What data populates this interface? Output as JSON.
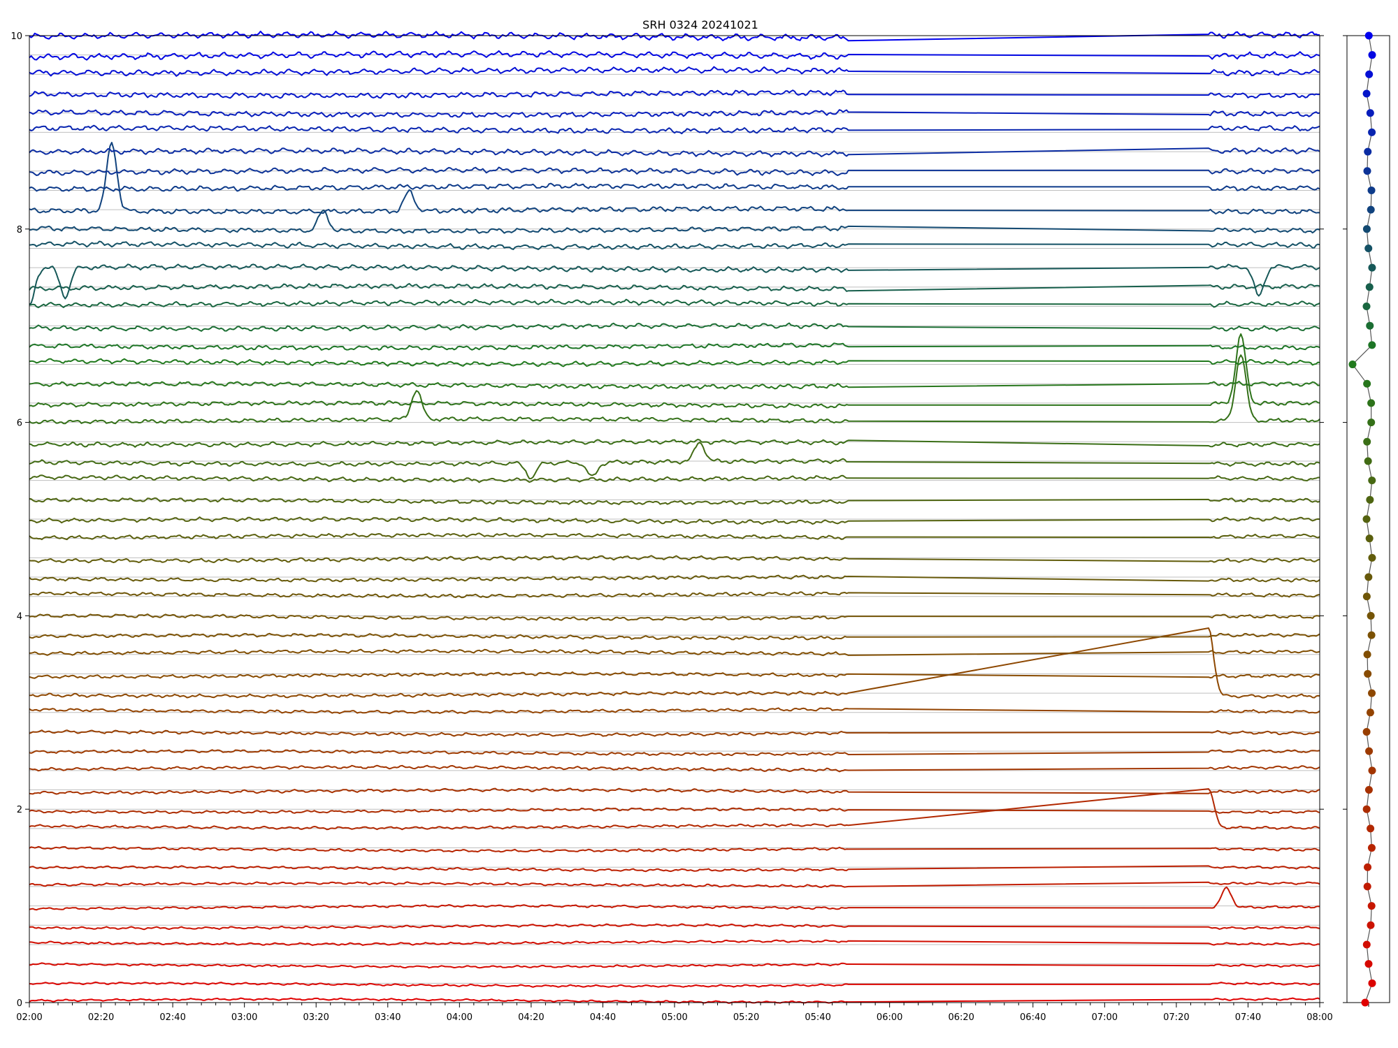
{
  "chart_data": [
    {
      "type": "line",
      "title": "SRH 0324 20241021",
      "xlabel": "",
      "ylabel": "",
      "x_range": [
        "02:00",
        "08:00"
      ],
      "x_tick_labels": [
        "02:00",
        "02:20",
        "02:40",
        "03:00",
        "03:20",
        "03:40",
        "04:00",
        "04:20",
        "04:40",
        "05:00",
        "05:20",
        "05:40",
        "06:00",
        "06:20",
        "06:40",
        "07:00",
        "07:20",
        "07:40",
        "08:00"
      ],
      "ylim": [
        0,
        10
      ],
      "y_ticks": [
        0,
        2,
        4,
        6,
        8,
        10
      ],
      "grid": "horizontal lines at each trace baseline",
      "series_count": 51,
      "baseline_step": 0.2,
      "data_gap": [
        "05:48",
        "07:29"
      ],
      "color_gradient": [
        "#e00000",
        "#8a4a00",
        "#1e7a1e",
        "#0000ee"
      ],
      "events": [
        {
          "series": 41,
          "time": "02:23",
          "peak": 0.7
        },
        {
          "series": 41,
          "time": "03:46",
          "peak": 0.2
        },
        {
          "series": 40,
          "time": "03:22",
          "peak": 0.2
        },
        {
          "series": 38,
          "time": "02:00",
          "peak": -0.4
        },
        {
          "series": 38,
          "time": "02:10",
          "peak": -0.3
        },
        {
          "series": 38,
          "time": "07:43",
          "peak": -0.3
        },
        {
          "series": 30,
          "time": "03:48",
          "peak": 0.3
        },
        {
          "series": 28,
          "time": "04:20",
          "peak": -0.15
        },
        {
          "series": 28,
          "time": "04:37",
          "peak": -0.15
        },
        {
          "series": 28,
          "time": "05:07",
          "peak": 0.2
        },
        {
          "series": 31,
          "time": "07:38",
          "peak": 0.7
        },
        {
          "series": 30,
          "time": "07:38",
          "peak": 0.7
        },
        {
          "series": 16,
          "time": "07:29",
          "peak": 0.7
        },
        {
          "series": 9,
          "time": "07:29",
          "peak": 0.4
        },
        {
          "series": 5,
          "time": "07:34",
          "peak": 0.2
        }
      ]
    },
    {
      "type": "scatter",
      "title": "",
      "points": 51,
      "y_range": [
        0,
        10
      ],
      "colors": "matches trace colors, red at bottom to blue at top"
    }
  ]
}
